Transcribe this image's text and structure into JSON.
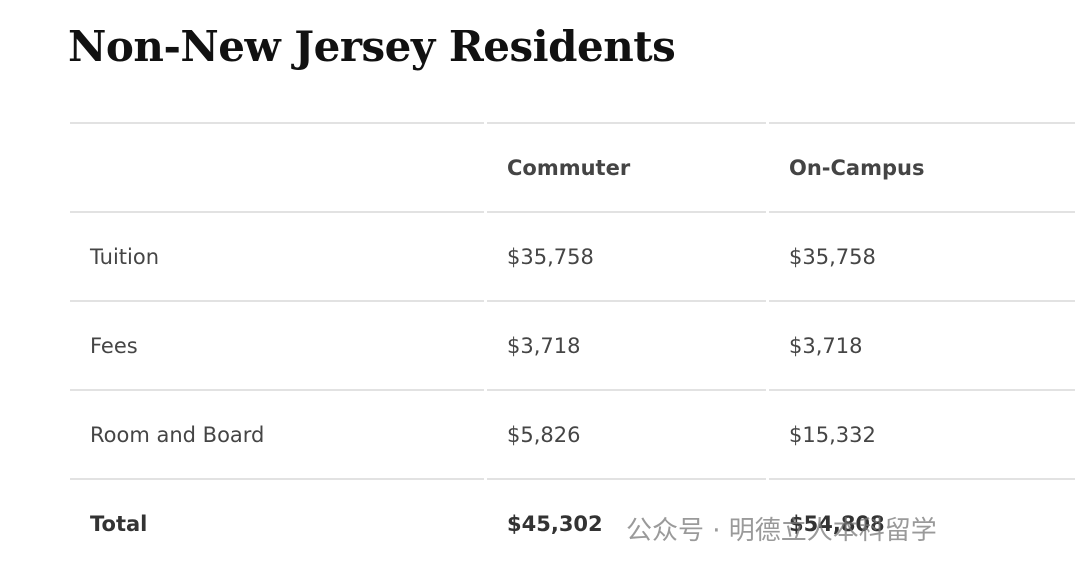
{
  "header": {
    "title": "Non-New Jersey Residents"
  },
  "table": {
    "columns": [
      "Commuter",
      "On-Campus"
    ],
    "rows": [
      [
        "Tuition",
        "$35,758",
        "$35,758"
      ],
      [
        "Fees",
        "$3,718",
        "$3,718"
      ],
      [
        "Room and Board",
        "$5,826",
        "$15,332"
      ],
      [
        "Total",
        "$45,302",
        "$54,808"
      ]
    ]
  },
  "watermark": "公众号 · 明德立人本科留学"
}
